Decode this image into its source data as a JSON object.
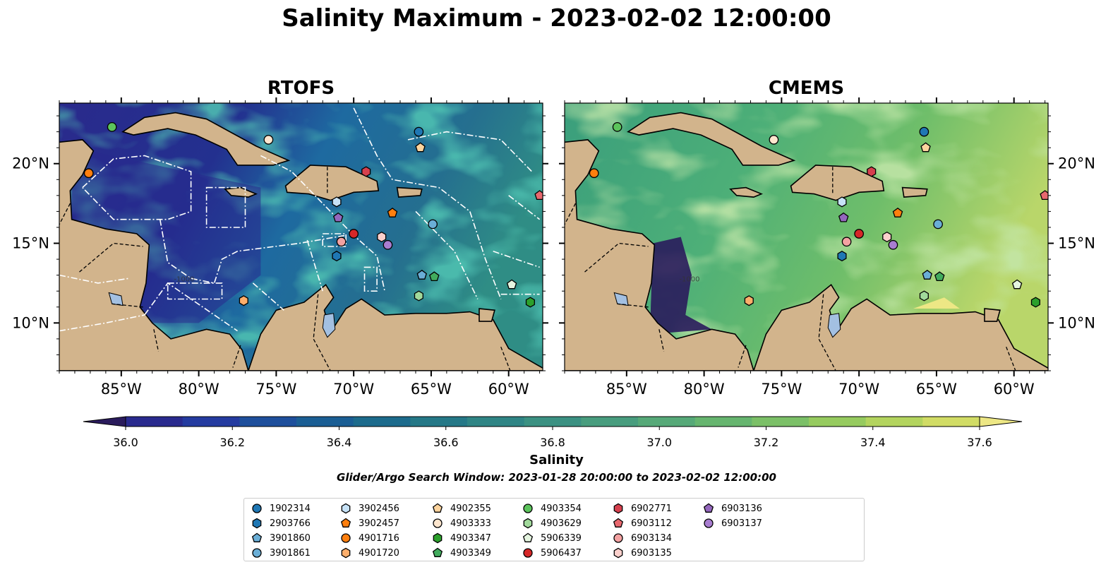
{
  "title": "Salinity Maximum - 2023-02-02 12:00:00",
  "panels": [
    {
      "id": "rtofs",
      "title": "RTOFS"
    },
    {
      "id": "cmems",
      "title": "CMEMS"
    }
  ],
  "colorbar": {
    "label": "Salinity",
    "ticks": [
      "36.0",
      "36.2",
      "36.4",
      "36.6",
      "36.8",
      "37.0",
      "37.2",
      "37.4",
      "37.6"
    ],
    "min": 36.0,
    "max": 37.6,
    "step": 0.1,
    "colors": [
      "#2a1b5c",
      "#292a8e",
      "#243ba0",
      "#1e4f9c",
      "#1a5e94",
      "#1c6b8c",
      "#257887",
      "#2f8585",
      "#3b9182",
      "#489d7e",
      "#56a978",
      "#66b56f",
      "#7bc067",
      "#96cb5f",
      "#b3d45e",
      "#d1dc65",
      "#ede785"
    ]
  },
  "search_window": "Glider/Argo Search Window: 2023-01-28 20:00:00 to 2023-02-02 12:00:00",
  "colors": {
    "land": "#d2b48c",
    "lakes": "#a3c0e2",
    "water_deep": "#271c63",
    "water_mid": "#1e57a0"
  },
  "chart_data": {
    "type": "map",
    "x_extent": [
      -89,
      -57.8
    ],
    "y_extent": [
      7,
      23.8
    ],
    "x_ticks": [
      -85,
      -80,
      -75,
      -70,
      -65,
      -60
    ],
    "x_tick_labels": [
      "85°W",
      "80°W",
      "75°W",
      "70°W",
      "65°W",
      "60°W"
    ],
    "y_ticks": [
      10,
      15,
      20
    ],
    "y_tick_labels": [
      "10°N",
      "15°N",
      "20°N"
    ],
    "contour_label": "-1000",
    "platforms": [
      {
        "id": "1902314",
        "marker": "circle",
        "color": "#1f77b4",
        "lon": -65.8,
        "lat": 22.0
      },
      {
        "id": "2903766",
        "marker": "hexagon",
        "color": "#1f77b4",
        "lon": -71.1,
        "lat": 14.2
      },
      {
        "id": "3901860",
        "marker": "pentagon",
        "color": "#6aaed6",
        "lon": -65.6,
        "lat": 13.0
      },
      {
        "id": "3901861",
        "marker": "circle",
        "color": "#6aaed6",
        "lon": -64.9,
        "lat": 16.2
      },
      {
        "id": "3902456",
        "marker": "hexagon",
        "color": "#c6e2f7",
        "lon": -71.1,
        "lat": 17.6
      },
      {
        "id": "3902457",
        "marker": "pentagon",
        "color": "#ff7f0e",
        "lon": -67.5,
        "lat": 16.9
      },
      {
        "id": "4901716",
        "marker": "circle",
        "color": "#ff7f0e",
        "lon": -87.1,
        "lat": 19.4
      },
      {
        "id": "4901720",
        "marker": "hexagon",
        "color": "#fdae6b",
        "lon": -77.1,
        "lat": 11.4
      },
      {
        "id": "4902355",
        "marker": "pentagon",
        "color": "#fdd49e",
        "lon": -65.7,
        "lat": 21.0
      },
      {
        "id": "4903333",
        "marker": "circle",
        "color": "#fee6ce",
        "lon": -75.5,
        "lat": 21.5
      },
      {
        "id": "4903347",
        "marker": "hexagon",
        "color": "#2ca02c",
        "lon": -58.6,
        "lat": 11.3
      },
      {
        "id": "4903349",
        "marker": "pentagon",
        "color": "#41ab5d",
        "lon": -64.8,
        "lat": 12.9
      },
      {
        "id": "4903354",
        "marker": "circle",
        "color": "#5cc45c",
        "lon": -85.6,
        "lat": 22.3
      },
      {
        "id": "4903629",
        "marker": "hexagon",
        "color": "#a1d99b",
        "lon": -65.8,
        "lat": 11.7
      },
      {
        "id": "5906339",
        "marker": "pentagon",
        "color": "#e5f5e0",
        "lon": -59.8,
        "lat": 12.4
      },
      {
        "id": "5906437",
        "marker": "circle",
        "color": "#d62728",
        "lon": -70.0,
        "lat": 15.6
      },
      {
        "id": "6902771",
        "marker": "hexagon",
        "color": "#d6404e",
        "lon": -69.2,
        "lat": 19.5
      },
      {
        "id": "6903112",
        "marker": "pentagon",
        "color": "#e8686e",
        "lon": -58.0,
        "lat": 18.0
      },
      {
        "id": "6903134",
        "marker": "circle",
        "color": "#f4a2a2",
        "lon": -70.8,
        "lat": 15.1
      },
      {
        "id": "6903135",
        "marker": "hexagon",
        "color": "#fbd0cc",
        "lon": -68.2,
        "lat": 15.4
      },
      {
        "id": "6903136",
        "marker": "pentagon",
        "color": "#9467bd",
        "lon": -71.0,
        "lat": 16.6
      },
      {
        "id": "6903137",
        "marker": "circle",
        "color": "#a87dd0",
        "lon": -67.8,
        "lat": 14.9
      }
    ]
  }
}
